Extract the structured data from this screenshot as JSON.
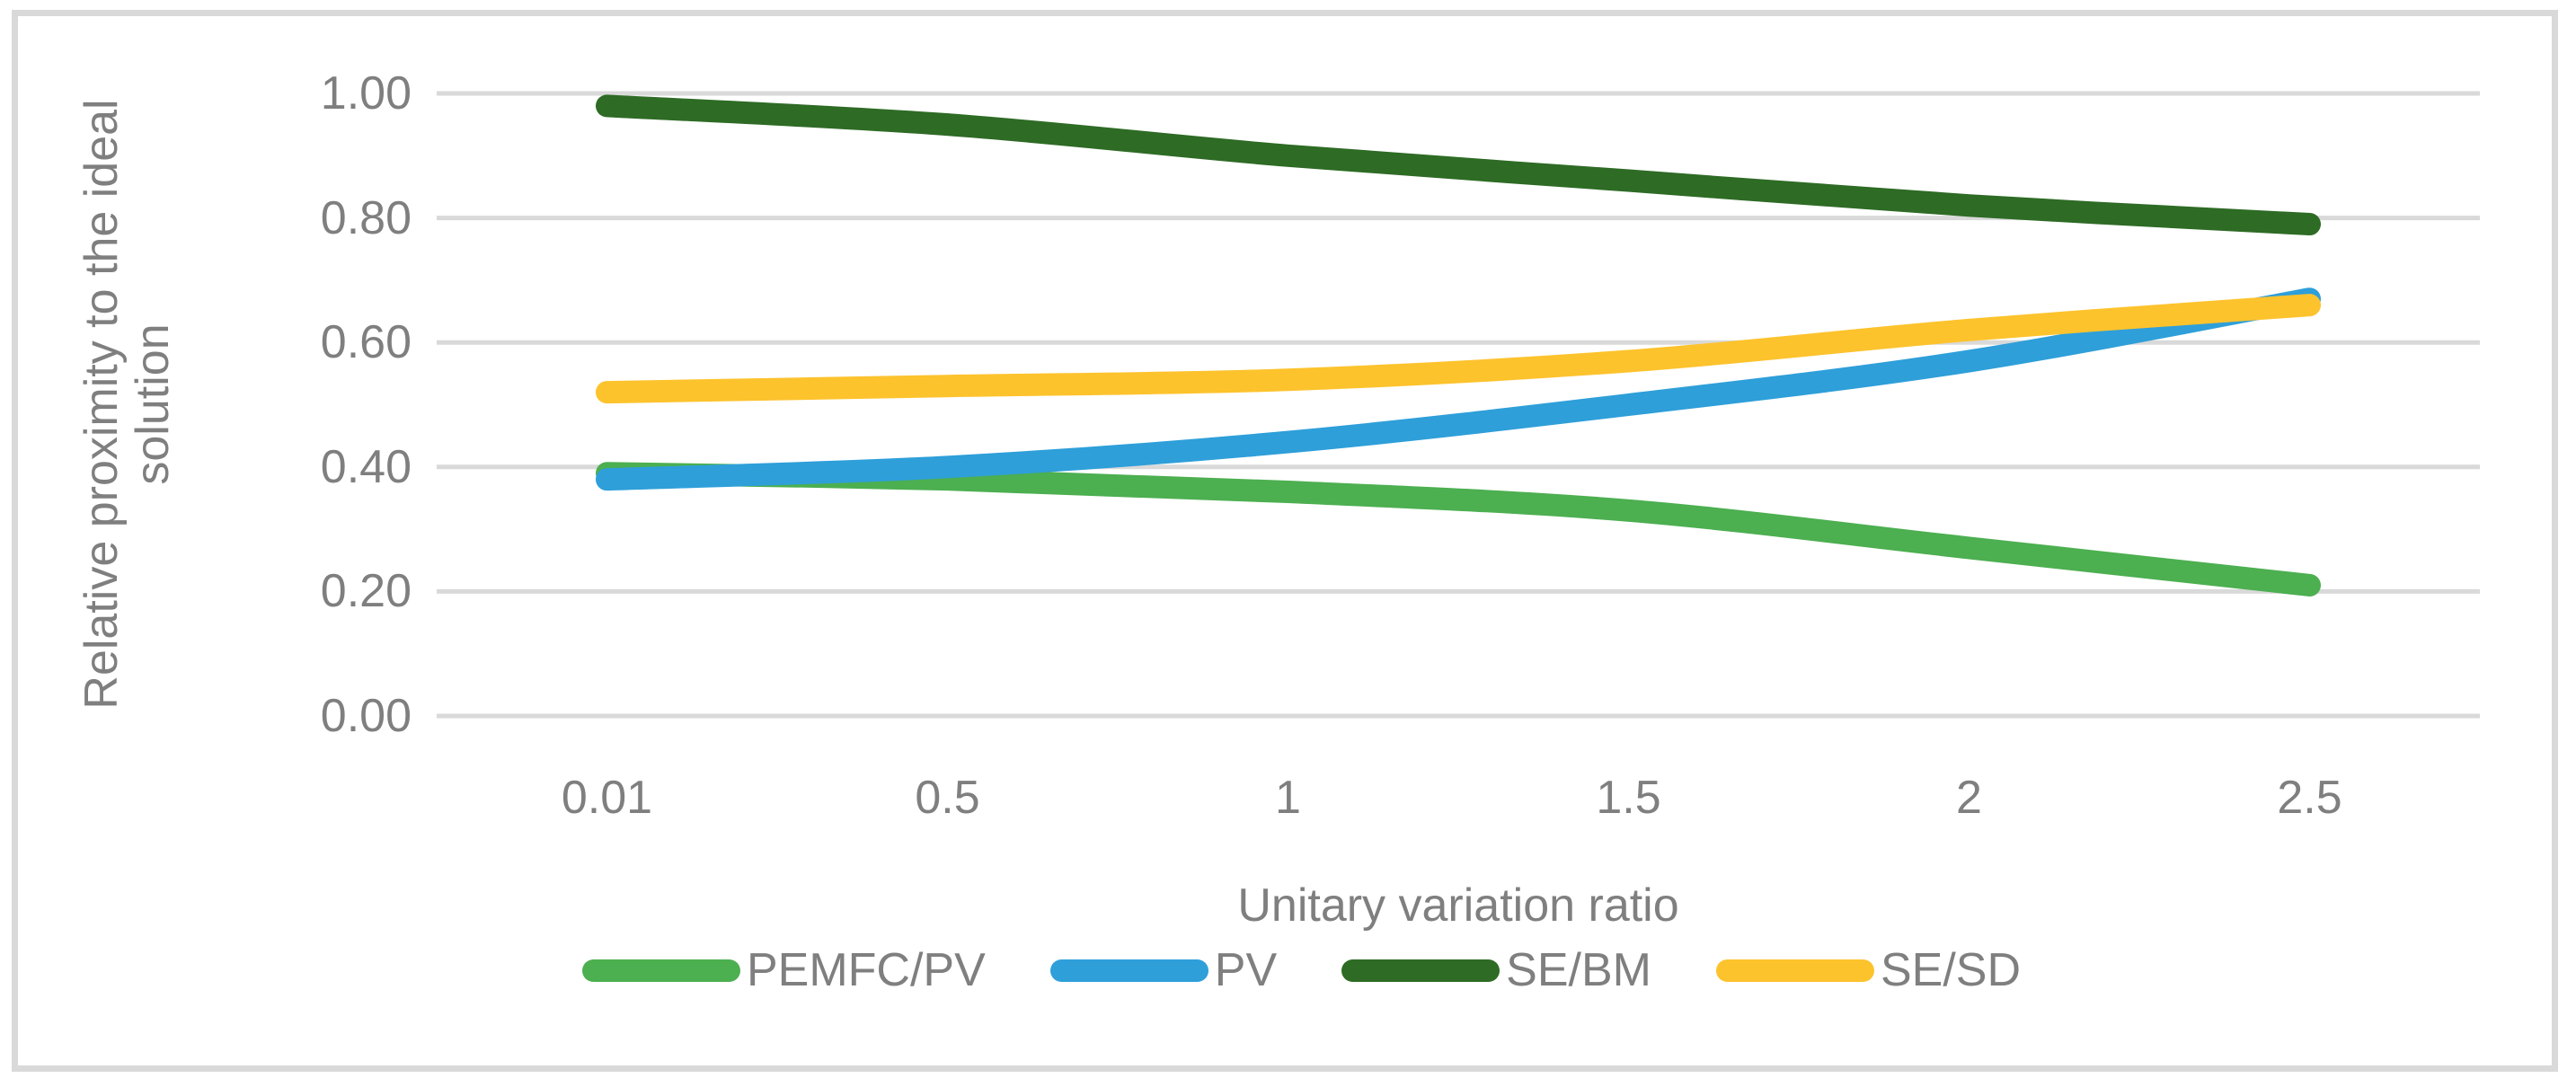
{
  "figure": {
    "background": "#FFFFFF",
    "frame_color": "#D9D9D9"
  },
  "chart_data": {
    "type": "line",
    "smoothed": true,
    "title": "",
    "xlabel": "Unitary variation ratio",
    "ylabel": "Relative proximity to the ideal solution",
    "ylabel_lines": [
      "Relative proximity to the ideal",
      "solution"
    ],
    "categories": [
      "0.01",
      "0.5",
      "1",
      "1.5",
      "2",
      "2.5"
    ],
    "x_values": [
      0.01,
      0.5,
      1,
      1.5,
      2,
      2.5
    ],
    "series": [
      {
        "name": "PEMFC/PV",
        "color": "#4CAF50",
        "values": [
          0.39,
          0.38,
          0.36,
          0.33,
          0.27,
          0.21
        ]
      },
      {
        "name": "PV",
        "color": "#2E9FD9",
        "values": [
          0.38,
          0.4,
          0.44,
          0.5,
          0.57,
          0.67
        ]
      },
      {
        "name": "SE/BM",
        "color": "#2E6B25",
        "values": [
          0.98,
          0.95,
          0.9,
          0.86,
          0.82,
          0.79
        ]
      },
      {
        "name": "SE/SD",
        "color": "#FDC32D",
        "values": [
          0.52,
          0.53,
          0.54,
          0.57,
          0.62,
          0.66
        ]
      }
    ],
    "y_ticks": [
      {
        "label": "1.00",
        "value": 1.0
      },
      {
        "label": "0.80",
        "value": 0.8
      },
      {
        "label": "0.60",
        "value": 0.6
      },
      {
        "label": "0.40",
        "value": 0.4
      },
      {
        "label": "0.20",
        "value": 0.2
      },
      {
        "label": "0.00",
        "value": 0.0
      }
    ],
    "ylim": [
      0.0,
      1.0
    ],
    "grid": "horizontal",
    "gridline_color": "#D9D9D9",
    "axis_text_color": "#7F7F7F",
    "legend_position": "bottom",
    "line_width": 25
  }
}
